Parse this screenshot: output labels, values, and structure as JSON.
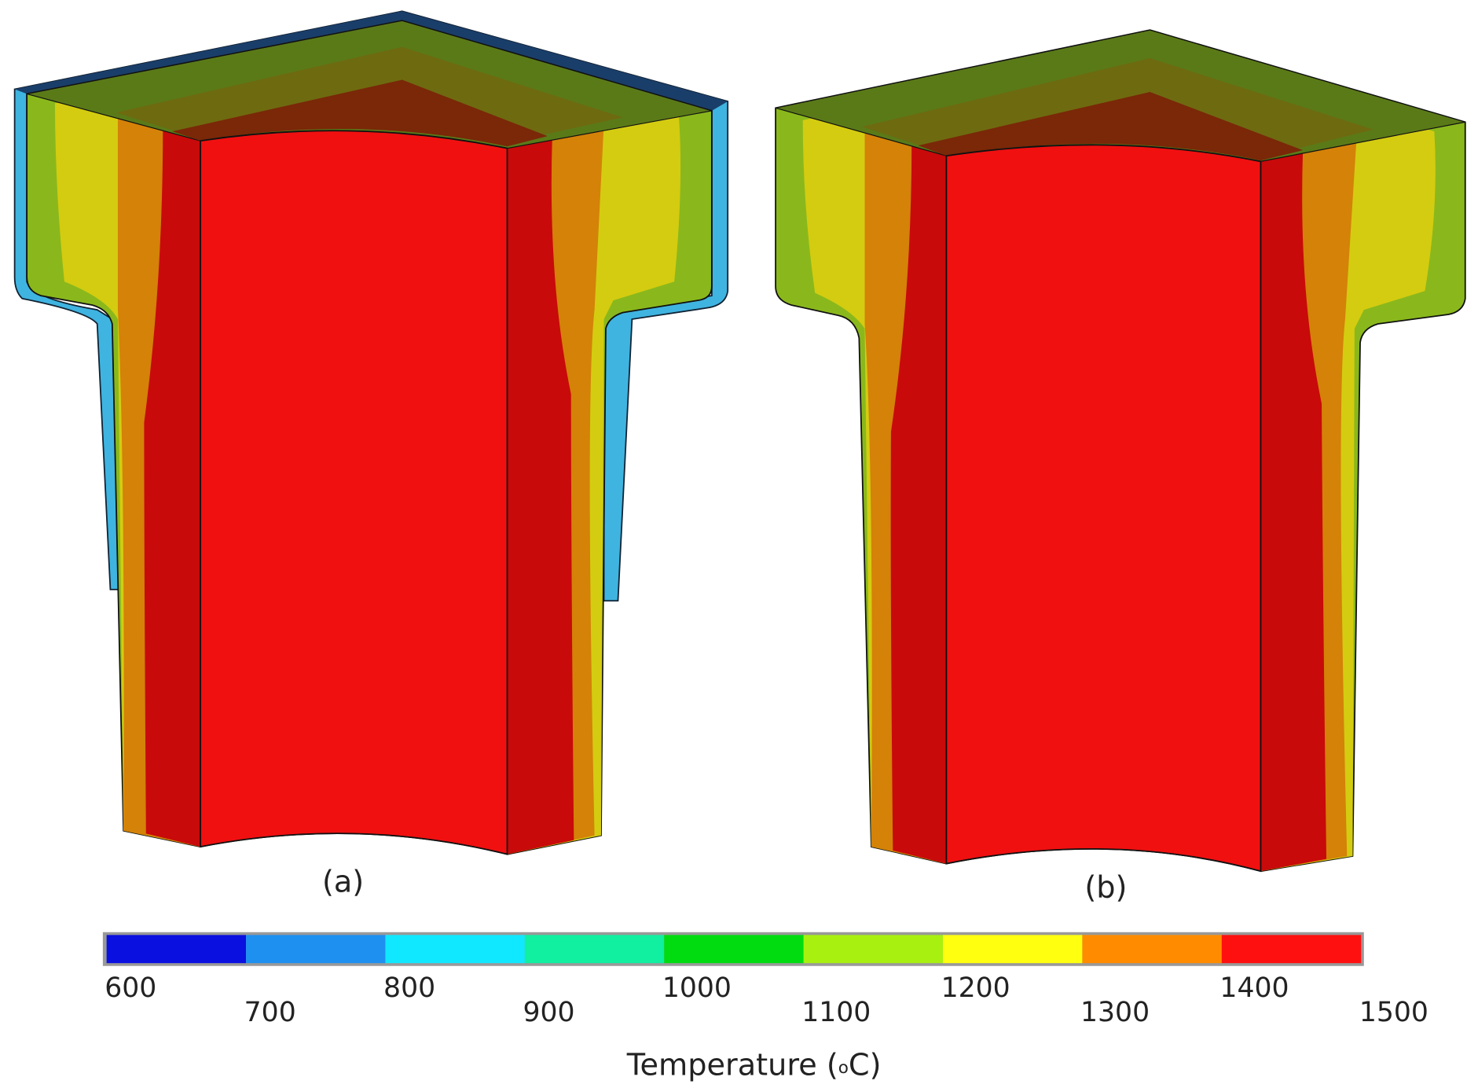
{
  "chart_data": {
    "type": "colorbar",
    "panels": [
      {
        "label": "(a)"
      },
      {
        "label": "(b)"
      }
    ],
    "colorbar": {
      "ticks": [
        600,
        700,
        800,
        900,
        1000,
        1100,
        1200,
        1300,
        1400,
        1500
      ],
      "colors": [
        "#0a10e0",
        "#1e90f0",
        "#10e8ff",
        "#10f0a0",
        "#00dc10",
        "#a8f010",
        "#ffff10",
        "#ff8c00",
        "#ff1010"
      ],
      "lim": [
        600,
        1500
      ]
    },
    "axis_label": {
      "text": "Temperature (",
      "superscript": "o",
      "end": "C)"
    }
  }
}
